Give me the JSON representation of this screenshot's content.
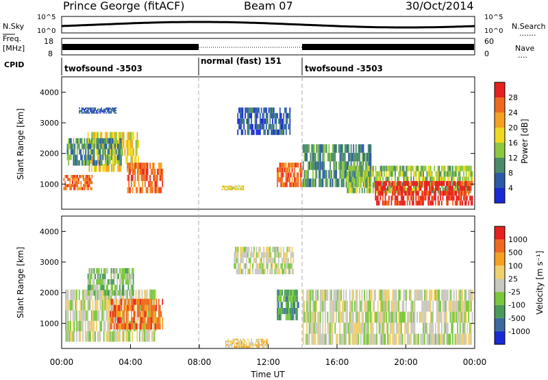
{
  "header": {
    "station": "Prince George (fitACF)",
    "beam": "Beam 07",
    "date": "30/Oct/2014"
  },
  "noise_panel": {
    "left_label": "N.Sky",
    "right_label": "N.Search",
    "right_axis_ticks": [
      "10^5",
      "10^0"
    ],
    "left_axis_ticks": [
      "10^5",
      "10^0"
    ]
  },
  "freq_panel": {
    "left_label_1": "Freq.",
    "left_label_2": "[MHz]",
    "left_ticks": [
      "18",
      "8"
    ],
    "right_ticks": [
      "60",
      "0"
    ],
    "right_label": "Nave"
  },
  "cpid": {
    "label": "CPID",
    "segments": [
      {
        "name": "twofsound -3503",
        "start_hour": 0,
        "end_hour": 8
      },
      {
        "name": "normal (fast) 151",
        "start_hour": 8,
        "end_hour": 14
      },
      {
        "name": "twofsound -3503",
        "start_hour": 14,
        "end_hour": 24
      }
    ]
  },
  "x_axis": {
    "label": "Time UT",
    "ticks": [
      "00:00",
      "04:00",
      "08:00",
      "12:00",
      "16:00",
      "20:00",
      "00:00"
    ]
  },
  "power_panel": {
    "ylabel": "Slant Range [km]",
    "yticks": [
      "1000",
      "2000",
      "3000",
      "4000"
    ],
    "colorbar_label": "Power [dB]",
    "colorbar_ticks": [
      "28",
      "24",
      "20",
      "16",
      "12",
      "8",
      "4"
    ],
    "colors": [
      "#1a2ad6",
      "#2a5aa8",
      "#4a8c6a",
      "#8cc83c",
      "#f0d81e",
      "#f5a01e",
      "#f06a1e",
      "#e8201e"
    ]
  },
  "velocity_panel": {
    "ylabel": "Slant Range [km]",
    "yticks": [
      "1000",
      "2000",
      "3000",
      "4000"
    ],
    "colorbar_label": "Velocity [m s⁻¹]",
    "colorbar_ticks": [
      "1000",
      "500",
      "100",
      "25",
      "-25",
      "-100",
      "-500",
      "-1000"
    ],
    "colors": [
      "#1a2ad6",
      "#3a6aa0",
      "#4a9a5a",
      "#7ac83c",
      "#c8c8c0",
      "#f0d06a",
      "#f5a01e",
      "#f06a1e",
      "#e8201e"
    ]
  },
  "chart_data": {
    "type": "heatmap",
    "x_range_hours": [
      0,
      24
    ],
    "y_range_km": [
      180,
      4500
    ],
    "power_regions": [
      {
        "t0": 0.1,
        "t1": 1.8,
        "r0": 800,
        "r1": 1300,
        "level": 6
      },
      {
        "t0": 1.5,
        "t1": 4.5,
        "r0": 1400,
        "r1": 2700,
        "level": 4
      },
      {
        "t0": 3.8,
        "t1": 5.9,
        "r0": 700,
        "r1": 1700,
        "level": 6
      },
      {
        "t0": 0.3,
        "t1": 3.5,
        "r0": 1600,
        "r1": 2500,
        "level": 2
      },
      {
        "t0": 1.0,
        "t1": 3.2,
        "r0": 3300,
        "r1": 3500,
        "level": 1
      },
      {
        "t0": 9.3,
        "t1": 10.6,
        "r0": 800,
        "r1": 950,
        "level": 4
      },
      {
        "t0": 10.2,
        "t1": 13.3,
        "r0": 2600,
        "r1": 3500,
        "level": 1
      },
      {
        "t0": 12.5,
        "t1": 14.0,
        "r0": 900,
        "r1": 1700,
        "level": 6
      },
      {
        "t0": 14.0,
        "t1": 18.0,
        "r0": 900,
        "r1": 2300,
        "level": 2
      },
      {
        "t0": 16.5,
        "t1": 23.9,
        "r0": 700,
        "r1": 1600,
        "level": 3
      },
      {
        "t0": 18.2,
        "t1": 23.9,
        "r0": 300,
        "r1": 1100,
        "level": 7
      }
    ],
    "velocity_regions": [
      {
        "t0": 0.2,
        "t1": 5.5,
        "r0": 400,
        "r1": 2100,
        "level": 4
      },
      {
        "t0": 2.8,
        "t1": 5.9,
        "r0": 800,
        "r1": 1800,
        "level": 7
      },
      {
        "t0": 1.5,
        "t1": 4.2,
        "r0": 1900,
        "r1": 2800,
        "level": 3
      },
      {
        "t0": 9.5,
        "t1": 12.0,
        "r0": 200,
        "r1": 500,
        "level": 5
      },
      {
        "t0": 10.0,
        "t1": 13.5,
        "r0": 2600,
        "r1": 3500,
        "level": 4
      },
      {
        "t0": 12.5,
        "t1": 13.8,
        "r0": 1100,
        "r1": 2100,
        "level": 2
      },
      {
        "t0": 14.0,
        "t1": 23.9,
        "r0": 300,
        "r1": 2100,
        "level": 4
      }
    ]
  }
}
